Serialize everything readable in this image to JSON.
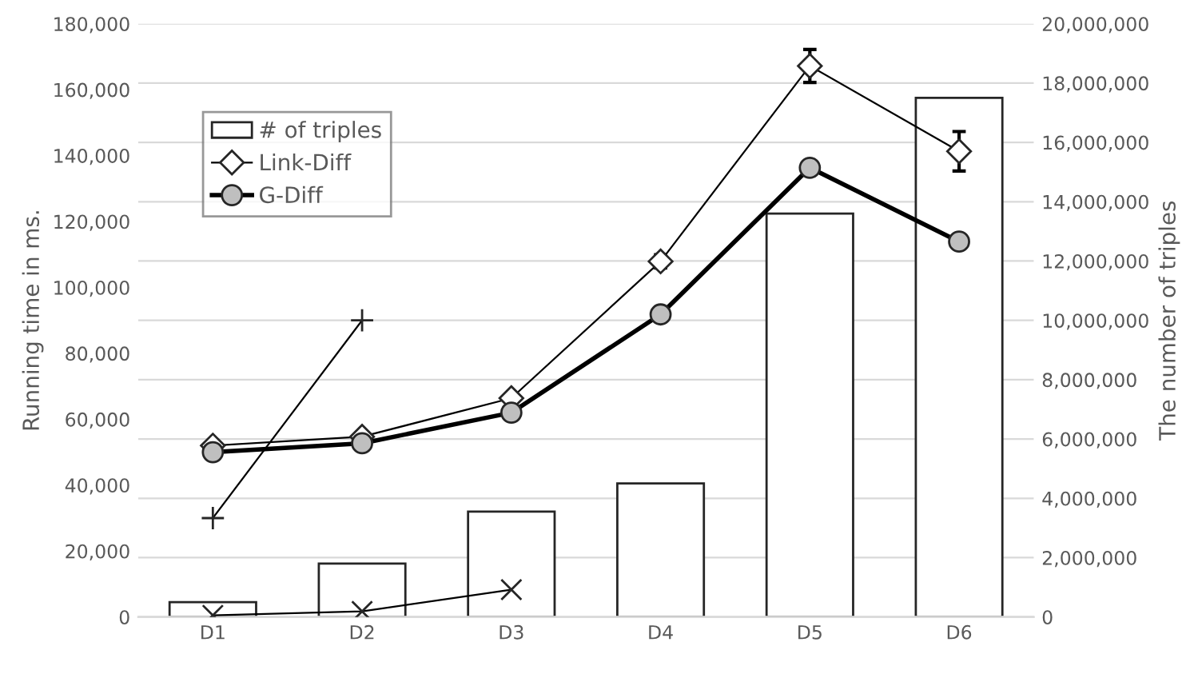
{
  "chart_data": {
    "type": "line",
    "ylabel": "Running time in ms.",
    "y2label": "The number of triples",
    "categories": [
      "D1",
      "D2",
      "D3",
      "D4",
      "D5",
      "D6"
    ],
    "series": [
      {
        "name": "# of triples",
        "type": "bar",
        "axis": "y2",
        "color": "#ffffff",
        "values": [
          500000,
          1800000,
          3550000,
          4500000,
          13600000,
          17500000
        ]
      },
      {
        "color": "#000000",
        "marker": "plus",
        "values": [
          30000,
          90000,
          null,
          null,
          null,
          null
        ]
      },
      {
        "name": "Link-Diff",
        "color": "#000000",
        "marker": "diamond",
        "values": [
          52000,
          54700,
          66400,
          107900,
          167200,
          141300
        ],
        "errors": [
          null,
          null,
          null,
          2000,
          5000,
          6000
        ]
      },
      {
        "color": "#000000",
        "marker": "cross",
        "values": [
          500,
          1700,
          8300,
          null,
          null,
          null
        ]
      },
      {
        "name": "G-Diff",
        "color": "#000000",
        "marker": "circle",
        "values": [
          50000,
          52700,
          62000,
          91800,
          136300,
          113900
        ],
        "errors": [
          null,
          null,
          null,
          null,
          2000,
          2000
        ]
      }
    ],
    "ylim": [
      0,
      180000
    ],
    "yticks": [
      {
        "value": 0,
        "label": "0"
      },
      {
        "value": 20000,
        "label": "20,000"
      },
      {
        "value": 40000,
        "label": "40,000"
      },
      {
        "value": 60000,
        "label": "60,000"
      },
      {
        "value": 80000,
        "label": "80,000"
      },
      {
        "value": 100000,
        "label": "100,000"
      },
      {
        "value": 120000,
        "label": "120,000"
      },
      {
        "value": 140000,
        "label": "140,000"
      },
      {
        "value": 160000,
        "label": "160,000"
      },
      {
        "value": 180000,
        "label": "180,000"
      }
    ],
    "y2lim": [
      0,
      20000000
    ],
    "y2ticks": [
      {
        "value": 0,
        "label": "0"
      },
      {
        "value": 2000000,
        "label": "2,000,000"
      },
      {
        "value": 4000000,
        "label": "4,000,000"
      },
      {
        "value": 6000000,
        "label": "6,000,000"
      },
      {
        "value": 8000000,
        "label": "8,000,000"
      },
      {
        "value": 10000000,
        "label": "10,000,000"
      },
      {
        "value": 12000000,
        "label": "12,000,000"
      },
      {
        "value": 14000000,
        "label": "14,000,000"
      },
      {
        "value": 16000000,
        "label": "16,000,000"
      },
      {
        "value": 18000000,
        "label": "18,000,000"
      },
      {
        "value": 20000000,
        "label": "20,000,000"
      }
    ],
    "grid": "y",
    "legend": "top left"
  }
}
